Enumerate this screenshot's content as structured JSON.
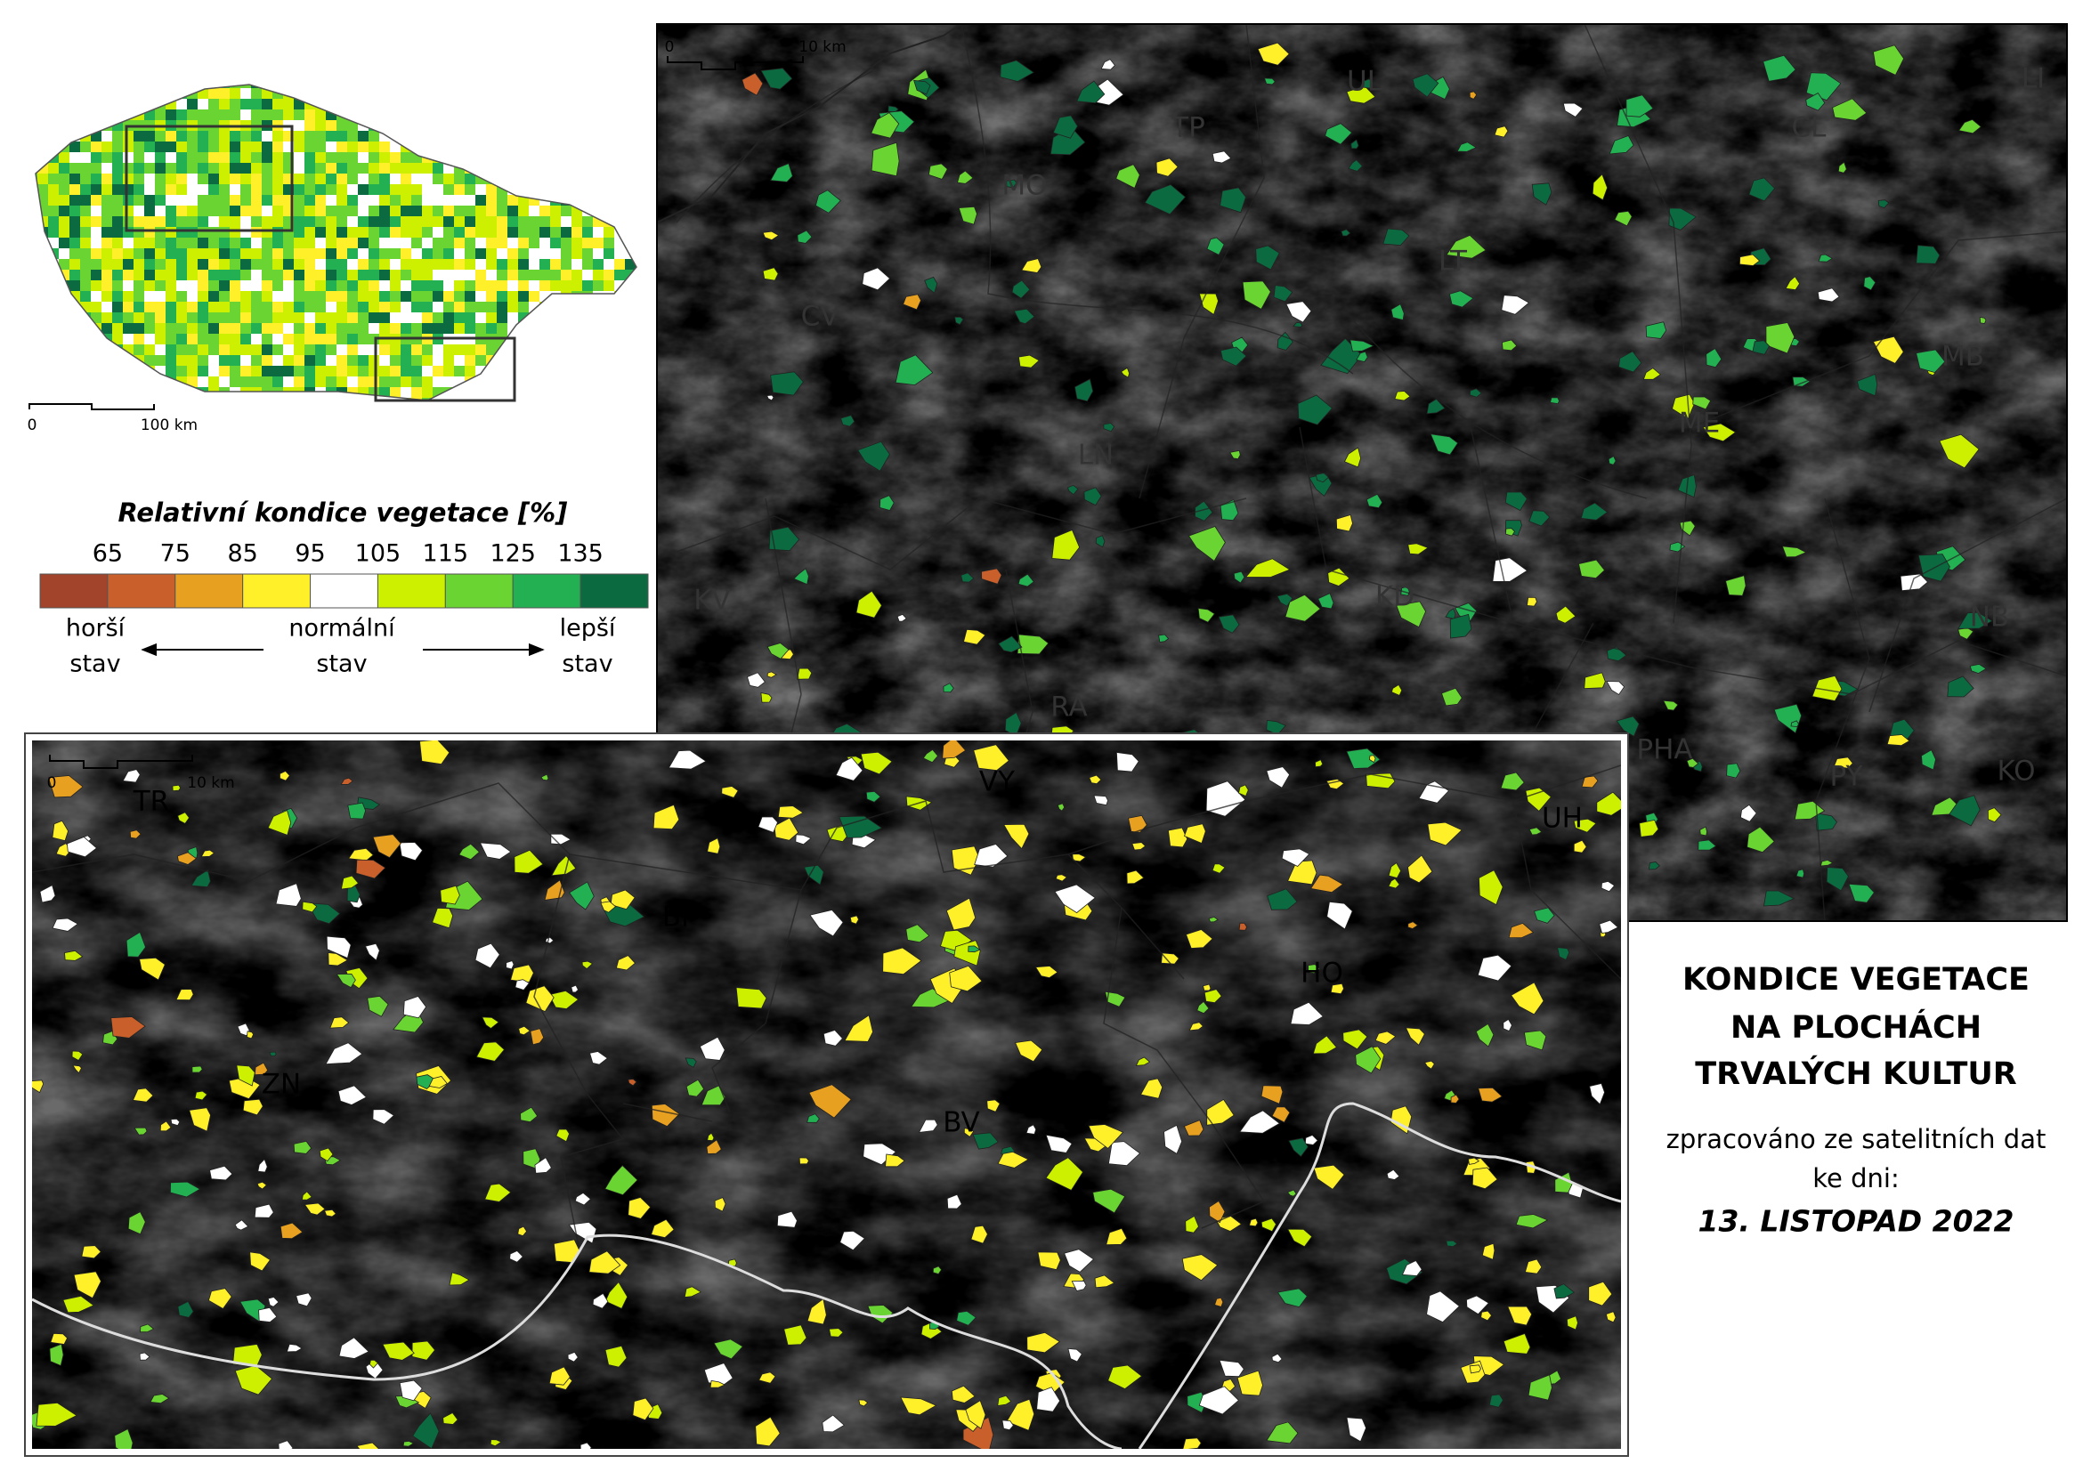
{
  "overview_map": {
    "scale_labels": [
      "0",
      "100 km"
    ]
  },
  "legend": {
    "title": "Relativní kondice vegetace [%]",
    "ticks": [
      65,
      75,
      85,
      95,
      105,
      115,
      125,
      135
    ],
    "colors": [
      "#a2432b",
      "#c95f2a",
      "#e8a020",
      "#fff02a",
      "#ffffff",
      "#cdf000",
      "#6ad432",
      "#23b052",
      "#0b6a40"
    ],
    "left": [
      "horší",
      "stav"
    ],
    "center": [
      "normální",
      "stav"
    ],
    "right": [
      "lepší",
      "stav"
    ]
  },
  "north_map": {
    "scale_labels": [
      "0",
      "10 km"
    ],
    "regions": [
      "MO",
      "TP",
      "UL",
      "CL",
      "LI",
      "CV",
      "LT",
      "MB",
      "ME",
      "LN",
      "KV",
      "KD",
      "NB",
      "RA",
      "PHA",
      "PY",
      "KO"
    ]
  },
  "south_map": {
    "scale_labels": [
      "0",
      "10 km"
    ],
    "regions": [
      "TR",
      "VY",
      "UH",
      "BI",
      "HO",
      "ZN",
      "BV"
    ]
  },
  "info": {
    "title": [
      "KONDICE VEGETACE",
      "NA PLOCHÁCH",
      "TRVALÝCH KULTUR"
    ],
    "subtitle": [
      "zpracováno ze satelitních dat",
      "ke dni:"
    ],
    "date": "13. LISTOPAD 2022"
  }
}
